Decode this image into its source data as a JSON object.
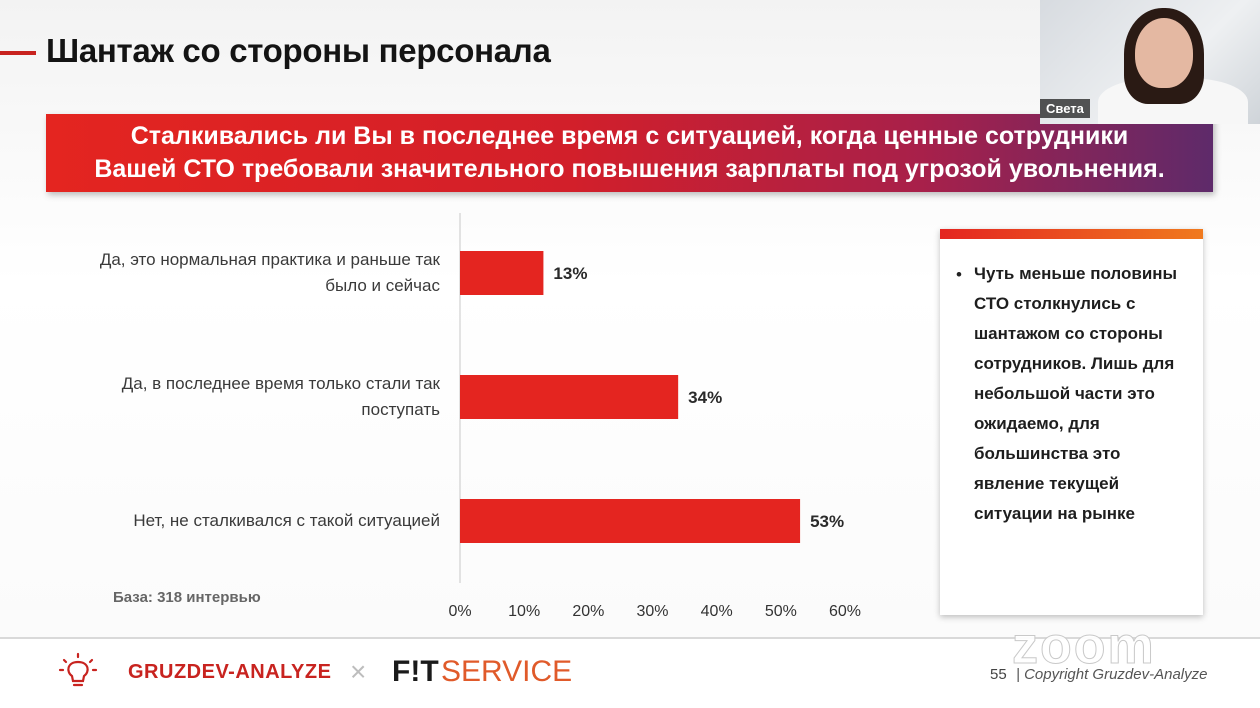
{
  "slide": {
    "title": "Шантаж со стороны персонала",
    "question_line1": "Сталкивались ли Вы в последнее время с ситуацией, когда ценные сотрудники",
    "question_line2": "Вашей СТО требовали значительного повышения зарплаты под угрозой увольнения.",
    "base_note": "База: 318 интервью",
    "side_note": "Чуть меньше половины СТО столкнулись с шантажом со стороны сотрудников. Лишь для небольшой части это ожидаемо, для большинства это явление текущей ситуации на рынке",
    "colors": {
      "bar": "#e42520",
      "accent": "#c8231f"
    }
  },
  "chart_data": {
    "type": "bar",
    "orientation": "horizontal",
    "categories": [
      "Да, это нормальная практика и раньше так было и сейчас",
      "Да, в последнее время только стали так поступать",
      "Нет, не сталкивался с такой ситуацией"
    ],
    "category_lines": [
      [
        "Да, это нормальная практика и раньше так",
        "было и сейчас"
      ],
      [
        "Да, в последнее время только стали так",
        "поступать"
      ],
      [
        "Нет, не сталкивался с такой ситуацией"
      ]
    ],
    "values": [
      13,
      34,
      53
    ],
    "data_labels": [
      "13%",
      "34%",
      "53%"
    ],
    "xlim": [
      0,
      60
    ],
    "x_ticks": [
      "0%",
      "10%",
      "20%",
      "30%",
      "40%",
      "50%",
      "60%"
    ],
    "grid": false
  },
  "video": {
    "participant_name": "Света",
    "watermark": "zoom"
  },
  "footer": {
    "brand1": "GRUZDEV-ANALYZE",
    "separator": "×",
    "brand2_bold": "F!T",
    "brand2_rest": "SERVICE",
    "page_number": "55",
    "copyright": "| Copyright Gruzdev-Analyze"
  }
}
